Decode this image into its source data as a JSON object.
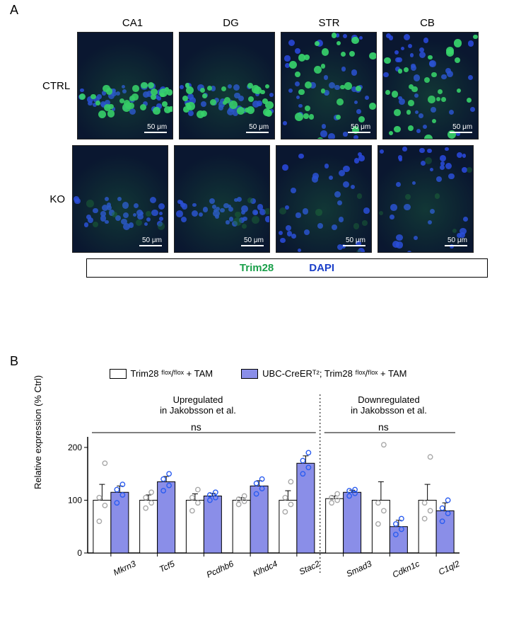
{
  "panelA": {
    "label": "A",
    "columns": [
      "CA1",
      "DG",
      "STR",
      "CB"
    ],
    "rows": [
      "CTRL",
      "KO"
    ],
    "scalebar_text": "50 μm",
    "stain_legend": {
      "green": "Trim28",
      "blue": "DAPI"
    },
    "colors": {
      "background": "#0a1730",
      "greensignal": "#38d86f",
      "bluesignal": "#2a4ae0",
      "dimgreen": "#1a6036",
      "scalebar": "#ffffff"
    }
  },
  "panelB": {
    "label": "B",
    "legend": {
      "ctrl": "Trim28 ᶠˡᵒˣ/ᶠˡᵒˣ + TAM",
      "ko": "UBC-CreERᵀ²; Trim28 ᶠˡᵒˣ/ᶠˡᵒˣ + TAM"
    },
    "ylabel": "Relative expression (% Ctrl)",
    "section_up": "Upregulated\nin Jakobsson et al.",
    "section_down": "Downregulated\nin Jakobsson et al.",
    "ns": "ns",
    "ylim": [
      0,
      220
    ],
    "yticks": [
      0,
      100,
      200
    ],
    "genes": [
      "Mkrn3",
      "Tcf5",
      "Pcdhb6",
      "Klhdc4",
      "Stac2",
      "Smad3",
      "Cdkn1c",
      "C1ql2"
    ],
    "divider_after_index": 4,
    "bars": [
      {
        "gene": "Mkrn3",
        "group": "ctrl",
        "mean": 100,
        "sem": 30,
        "points": [
          60,
          90,
          105,
          170
        ]
      },
      {
        "gene": "Mkrn3",
        "group": "ko",
        "mean": 115,
        "sem": 12,
        "points": [
          95,
          110,
          120,
          130
        ]
      },
      {
        "gene": "Tcf5",
        "group": "ctrl",
        "mean": 100,
        "sem": 10,
        "points": [
          85,
          95,
          105,
          115
        ]
      },
      {
        "gene": "Tcf5",
        "group": "ko",
        "mean": 135,
        "sem": 10,
        "points": [
          118,
          128,
          140,
          150
        ]
      },
      {
        "gene": "Pcdhb6",
        "group": "ctrl",
        "mean": 100,
        "sem": 12,
        "points": [
          80,
          95,
          105,
          120
        ]
      },
      {
        "gene": "Pcdhb6",
        "group": "ko",
        "mean": 108,
        "sem": 5,
        "points": [
          100,
          105,
          110,
          115
        ]
      },
      {
        "gene": "Klhdc4",
        "group": "ctrl",
        "mean": 100,
        "sem": 5,
        "points": [
          92,
          98,
          102,
          108
        ]
      },
      {
        "gene": "Klhdc4",
        "group": "ko",
        "mean": 127,
        "sem": 10,
        "points": [
          112,
          122,
          132,
          140
        ]
      },
      {
        "gene": "Stac2",
        "group": "ctrl",
        "mean": 100,
        "sem": 18,
        "points": [
          78,
          92,
          105,
          135
        ]
      },
      {
        "gene": "Stac2",
        "group": "ko",
        "mean": 170,
        "sem": 14,
        "points": [
          150,
          162,
          175,
          190
        ]
      },
      {
        "gene": "Smad3",
        "group": "ctrl",
        "mean": 103,
        "sem": 5,
        "points": [
          95,
          100,
          105,
          112
        ]
      },
      {
        "gene": "Smad3",
        "group": "ko",
        "mean": 115,
        "sem": 4,
        "points": [
          108,
          113,
          118,
          120
        ]
      },
      {
        "gene": "Cdkn1c",
        "group": "ctrl",
        "mean": 100,
        "sem": 35,
        "points": [
          55,
          80,
          95,
          205
        ]
      },
      {
        "gene": "Cdkn1c",
        "group": "ko",
        "mean": 50,
        "sem": 12,
        "points": [
          35,
          45,
          55,
          65
        ]
      },
      {
        "gene": "C1ql2",
        "group": "ctrl",
        "mean": 100,
        "sem": 30,
        "points": [
          65,
          80,
          95,
          182
        ]
      },
      {
        "gene": "C1ql2",
        "group": "ko",
        "mean": 80,
        "sem": 15,
        "points": [
          60,
          75,
          85,
          100
        ]
      }
    ],
    "colors": {
      "ctrl_fill": "#ffffff",
      "ko_fill": "#8a8ee8",
      "ctrl_point": "#a8a8a8",
      "ko_point": "#2a5cf0",
      "axis": "#000000"
    },
    "bar_width": 0.38
  }
}
